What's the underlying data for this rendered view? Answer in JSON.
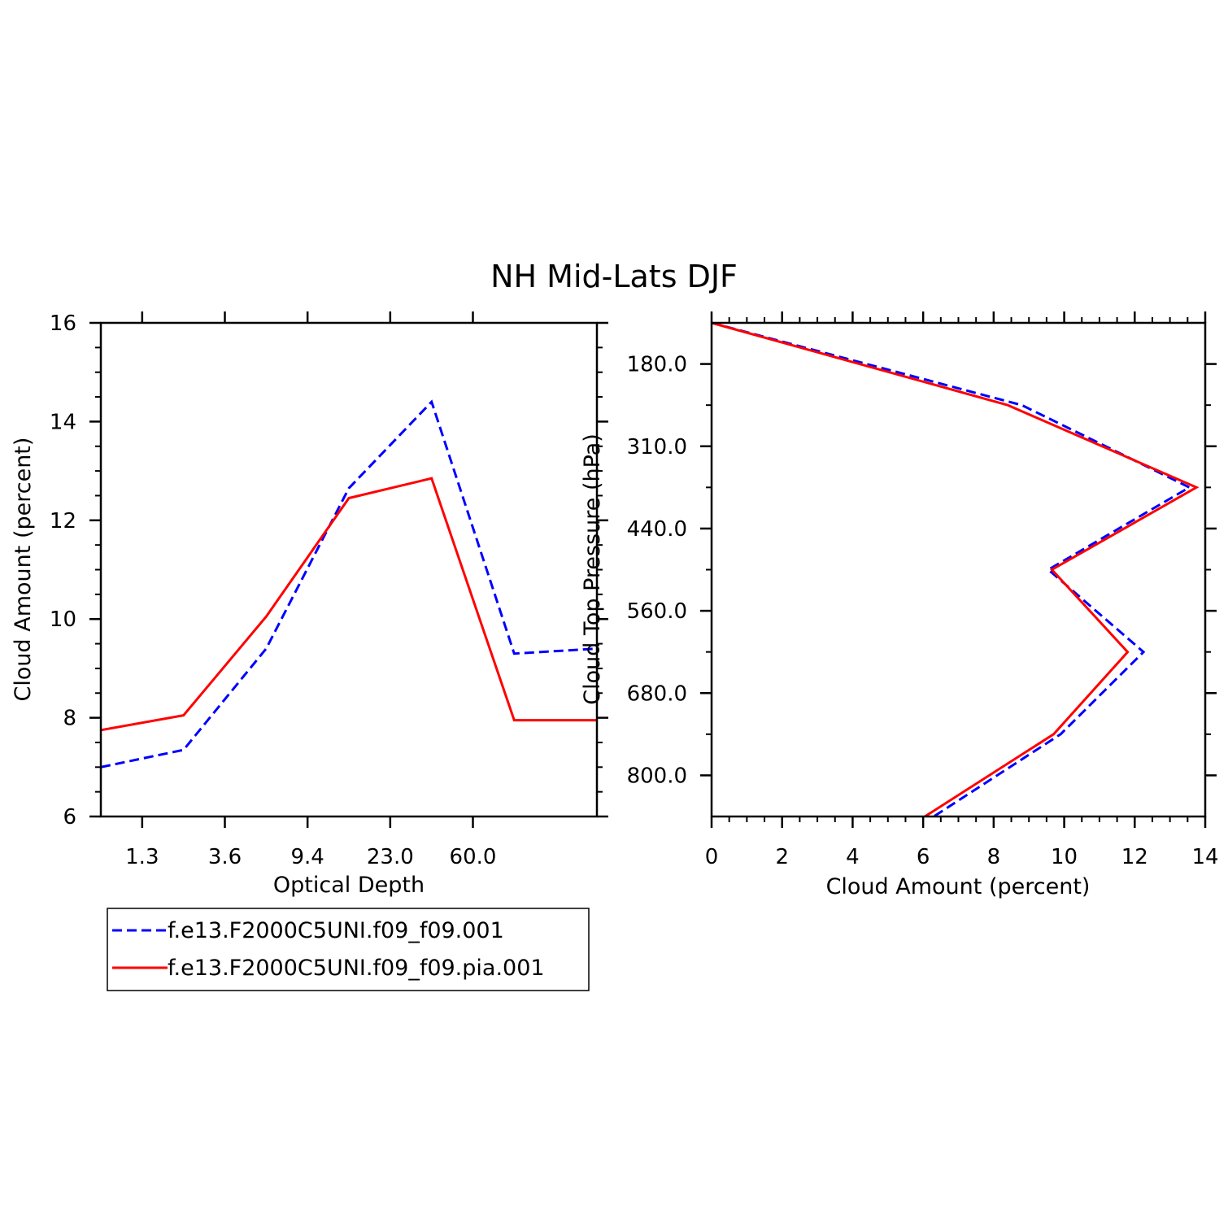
{
  "figure": {
    "title": "NH Mid-Lats DJF"
  },
  "colors": {
    "series_a": "#0000ff",
    "series_b": "#ff0000",
    "axes": "#000000"
  },
  "legend": {
    "items": [
      {
        "label": "f.e13.F2000C5UNI.f09_f09.001",
        "style": "dashed",
        "color": "#0000ff"
      },
      {
        "label": "f.e13.F2000C5UNI.f09_f09.pia.001",
        "style": "solid",
        "color": "#ff0000"
      }
    ]
  },
  "chart_data": [
    {
      "type": "line",
      "xlabel": "Optical Depth",
      "ylabel": "Cloud Amount (percent)",
      "x_tick_labels": [
        "1.3",
        "3.6",
        "9.4",
        "23.0",
        "60.0"
      ],
      "x_bins": 7,
      "ylim": [
        6,
        16
      ],
      "y_ticks": [
        6,
        8,
        10,
        12,
        14,
        16
      ],
      "series": [
        {
          "name": "f.e13.F2000C5UNI.f09_f09.001",
          "style": "dashed",
          "color": "#0000ff",
          "values": [
            7.0,
            7.35,
            9.4,
            12.65,
            14.4,
            9.3,
            9.4
          ]
        },
        {
          "name": "f.e13.F2000C5UNI.f09_f09.pia.001",
          "style": "solid",
          "color": "#ff0000",
          "values": [
            7.75,
            8.05,
            10.05,
            12.45,
            12.85,
            7.95,
            7.95
          ]
        }
      ]
    },
    {
      "type": "line",
      "orientation": "vertical-profile",
      "xlabel": "Cloud Amount (percent)",
      "ylabel": "Cloud Top Pressure (hPa)",
      "xlim": [
        0,
        14
      ],
      "x_ticks": [
        0,
        2,
        4,
        6,
        8,
        10,
        12,
        14
      ],
      "y_tick_labels": [
        "180.0",
        "310.0",
        "440.0",
        "560.0",
        "680.0",
        "800.0"
      ],
      "y_levels": 7,
      "series": [
        {
          "name": "f.e13.F2000C5UNI.f09_f09.001",
          "style": "dashed",
          "color": "#0000ff",
          "values": [
            0.0,
            8.8,
            13.55,
            9.55,
            12.25,
            9.9,
            6.3
          ]
        },
        {
          "name": "f.e13.F2000C5UNI.f09_f09.pia.001",
          "style": "solid",
          "color": "#ff0000",
          "values": [
            0.0,
            8.4,
            13.75,
            9.65,
            11.8,
            9.7,
            6.05
          ]
        }
      ]
    }
  ]
}
